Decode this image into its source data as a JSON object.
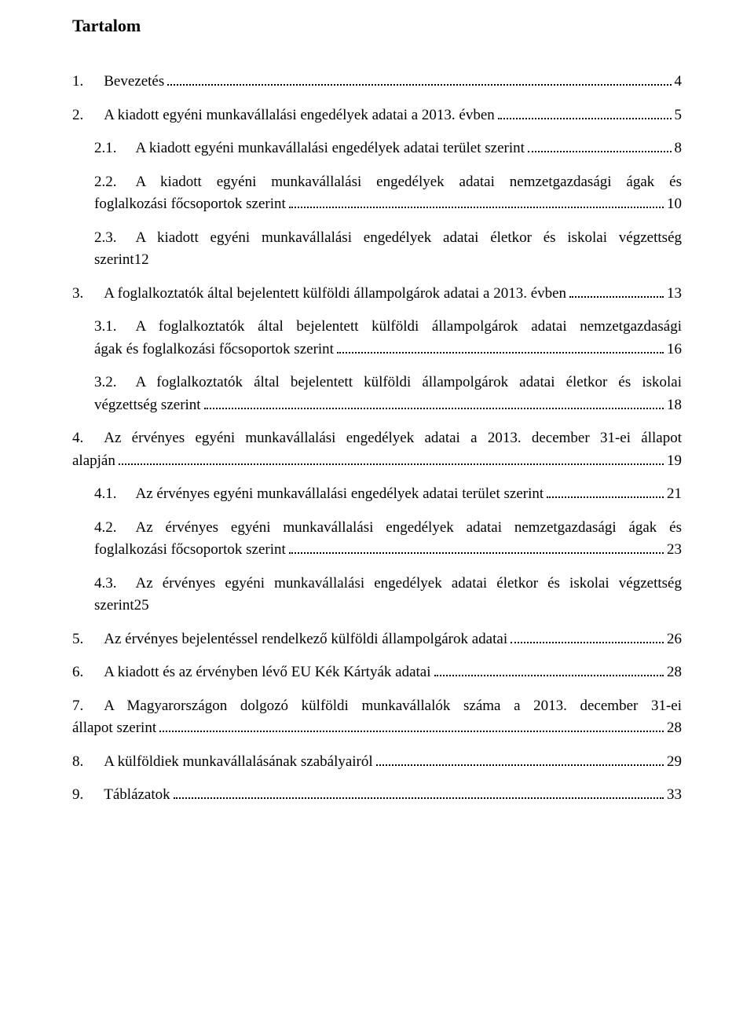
{
  "title": "Tartalom",
  "entries": [
    {
      "num": "1.",
      "gap": "wide",
      "text": "Bevezetés",
      "page": "4",
      "indent": 0,
      "multiline": false
    },
    {
      "num": "2.",
      "gap": "wide",
      "text": "A kiadott egyéni munkavállalási engedélyek adatai a 2013. évben",
      "page": "5",
      "indent": 0,
      "multiline": false
    },
    {
      "num": "2.1.",
      "gap": "mid",
      "text": "A kiadott egyéni munkavállalási engedélyek adatai terület szerint",
      "page": "8",
      "indent": 1,
      "multiline": false
    },
    {
      "num": "2.2.",
      "gap": "mid",
      "first": "A kiadott egyéni munkavállalási engedélyek adatai nemzetgazdasági ágak és",
      "rest": "foglalkozási főcsoportok szerint",
      "page": "10",
      "indent": 1,
      "multiline": true
    },
    {
      "num": "2.3.",
      "gap": "mid",
      "first": "A kiadott egyéni munkavállalási engedélyek adatai életkor és iskolai végzettség",
      "rest": "szerint12",
      "page": "",
      "indent": 1,
      "multiline": true,
      "noleader": true
    },
    {
      "num": "3.",
      "gap": "wide",
      "text": "A foglalkoztatók által bejelentett külföldi állampolgárok adatai a  2013. évben",
      "page": "13",
      "indent": 0,
      "multiline": false
    },
    {
      "num": "3.1.",
      "gap": "mid",
      "first": "A foglalkoztatók által bejelentett külföldi állampolgárok adatai nemzetgazdasági",
      "rest": "ágak és foglalkozási főcsoportok szerint",
      "page": "16",
      "indent": 1,
      "multiline": true
    },
    {
      "num": "3.2.",
      "gap": "mid",
      "first": "A foglalkoztatók által bejelentett külföldi állampolgárok adatai életkor és iskolai",
      "rest": "végzettség szerint",
      "page": "18",
      "indent": 1,
      "multiline": true
    },
    {
      "num": "4.",
      "gap": "wide",
      "first": "Az érvényes egyéni munkavállalási engedélyek adatai a  2013. december 31-ei állapot",
      "rest": "alapján",
      "page": "19",
      "indent": 0,
      "multiline": true,
      "hang": true
    },
    {
      "num": "4.1.",
      "gap": "mid",
      "text": "Az érvényes egyéni munkavállalási engedélyek adatai terület szerint",
      "page": "21",
      "indent": 1,
      "multiline": false
    },
    {
      "num": "4.2.",
      "gap": "mid",
      "first": "Az érvényes egyéni munkavállalási engedélyek adatai nemzetgazdasági ágak és",
      "rest": "foglalkozási főcsoportok szerint",
      "page": "23",
      "indent": 1,
      "multiline": true
    },
    {
      "num": "4.3.",
      "gap": "mid",
      "first": "Az érvényes egyéni munkavállalási engedélyek adatai életkor és iskolai végzettség",
      "rest": "szerint25",
      "page": "",
      "indent": 1,
      "multiline": true,
      "noleader": true
    },
    {
      "num": "5.",
      "gap": "wide",
      "text": "Az érvényes bejelentéssel rendelkező külföldi állampolgárok adatai",
      "page": "26",
      "indent": 0,
      "multiline": false
    },
    {
      "num": "6.",
      "gap": "wide",
      "text": "A kiadott és az érvényben lévő EU Kék Kártyák adatai",
      "page": "28",
      "indent": 0,
      "multiline": false
    },
    {
      "num": "7.",
      "gap": "wide",
      "first": "A Magyarországon dolgozó külföldi munkavállalók száma a  2013. december 31-ei",
      "rest": "állapot szerint",
      "page": "28",
      "indent": 0,
      "multiline": true,
      "hang": true
    },
    {
      "num": "8.",
      "gap": "wide",
      "text": "A külföldiek munkavállalásának szabályairól",
      "page": "29",
      "indent": 0,
      "multiline": false
    },
    {
      "num": "9.",
      "gap": "wide",
      "text": "Táblázatok",
      "page": "33",
      "indent": 0,
      "multiline": false
    }
  ]
}
